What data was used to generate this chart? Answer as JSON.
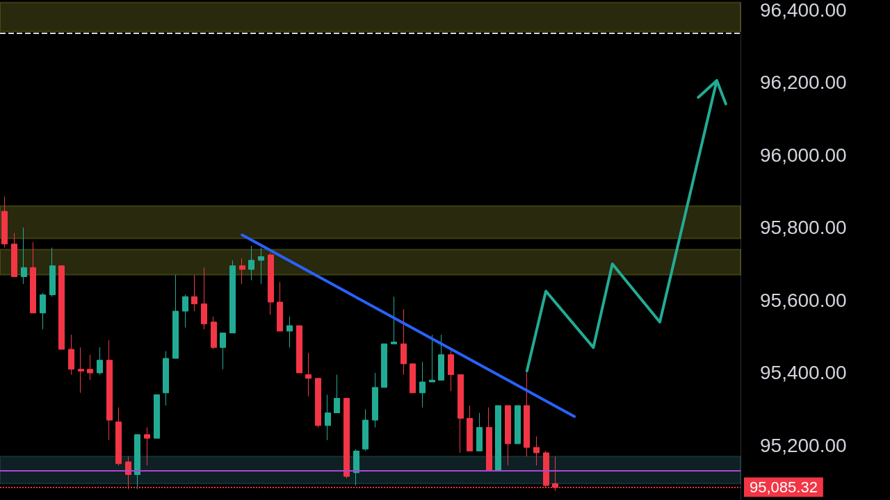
{
  "chart_data": {
    "type": "candlestick",
    "categories": [
      null,
      null,
      null,
      null,
      null,
      null,
      null,
      null,
      null,
      null,
      null,
      null,
      null,
      null,
      null,
      null,
      null,
      null,
      null,
      null,
      null,
      null,
      null,
      null,
      null,
      null,
      null,
      null,
      null,
      null,
      null,
      null,
      null,
      null,
      null,
      null,
      null,
      null,
      null,
      null,
      null,
      null,
      null,
      null,
      null,
      null,
      null,
      null,
      null,
      null,
      null,
      null,
      null,
      null,
      null,
      null,
      null,
      null,
      null,
      null,
      null,
      null,
      null,
      null,
      null,
      null,
      null,
      null,
      null,
      null,
      null,
      null,
      null,
      null,
      null,
      null,
      null,
      null
    ],
    "ohlc": [
      [
        95845,
        95885,
        95745,
        95755
      ],
      [
        95755,
        95785,
        95665,
        95665
      ],
      [
        95665,
        95800,
        95645,
        95690
      ],
      [
        95690,
        95760,
        95565,
        95565
      ],
      [
        95565,
        95620,
        95520,
        95615
      ],
      [
        95615,
        95745,
        95610,
        95695
      ],
      [
        95695,
        95695,
        95465,
        95465
      ],
      [
        95465,
        95505,
        95395,
        95410
      ],
      [
        95410,
        95470,
        95345,
        95405
      ],
      [
        95410,
        95450,
        95380,
        95400
      ],
      [
        95400,
        95470,
        95395,
        95435
      ],
      [
        95435,
        95490,
        95215,
        95270
      ],
      [
        95265,
        95305,
        95145,
        95150
      ],
      [
        95155,
        95170,
        95080,
        95120
      ],
      [
        95120,
        95230,
        95080,
        95230
      ],
      [
        95230,
        95250,
        95145,
        95220
      ],
      [
        95220,
        95340,
        95220,
        95340
      ],
      [
        95345,
        95460,
        95310,
        95440
      ],
      [
        95440,
        95670,
        95440,
        95570
      ],
      [
        95570,
        95615,
        95525,
        95610
      ],
      [
        95610,
        95670,
        95570,
        95590
      ],
      [
        95590,
        95690,
        95520,
        95535
      ],
      [
        95540,
        95555,
        95465,
        95470
      ],
      [
        95470,
        95510,
        95410,
        95510
      ],
      [
        95510,
        95710,
        95510,
        95695
      ],
      [
        95695,
        95715,
        95645,
        95685
      ],
      [
        95685,
        95750,
        95655,
        95710
      ],
      [
        95710,
        95745,
        95645,
        95720
      ],
      [
        95725,
        95730,
        95560,
        95595
      ],
      [
        95595,
        95650,
        95515,
        95515
      ],
      [
        95515,
        95555,
        95470,
        95530
      ],
      [
        95530,
        95530,
        95400,
        95400
      ],
      [
        95395,
        95455,
        95335,
        95385
      ],
      [
        95385,
        95385,
        95250,
        95255
      ],
      [
        95255,
        95340,
        95215,
        95290
      ],
      [
        95290,
        95395,
        95290,
        95330
      ],
      [
        95330,
        95330,
        95110,
        95115
      ],
      [
        95125,
        95190,
        95090,
        95185
      ],
      [
        95190,
        95300,
        95185,
        95270
      ],
      [
        95270,
        95400,
        95250,
        95360
      ],
      [
        95360,
        95480,
        95360,
        95480
      ],
      [
        95480,
        95610,
        95480,
        95485
      ],
      [
        95480,
        95575,
        95395,
        95425
      ],
      [
        95425,
        95425,
        95345,
        95345
      ],
      [
        95345,
        95430,
        95305,
        95375
      ],
      [
        95375,
        95505,
        95375,
        95380
      ],
      [
        95380,
        95505,
        95380,
        95450
      ],
      [
        95450,
        95465,
        95350,
        95395
      ],
      [
        95395,
        95395,
        95180,
        95275
      ],
      [
        95275,
        95310,
        95185,
        95185
      ],
      [
        95185,
        95290,
        95185,
        95250
      ],
      [
        95250,
        95305,
        95130,
        95130
      ],
      [
        95130,
        95310,
        95130,
        95310
      ],
      [
        95310,
        95310,
        95145,
        95205
      ],
      [
        95205,
        95310,
        95205,
        95310
      ],
      [
        95310,
        95400,
        95170,
        95195
      ],
      [
        95195,
        95225,
        95145,
        95180
      ],
      [
        95180,
        95185,
        95085,
        95090
      ],
      [
        95095,
        95170,
        95075,
        95085
      ],
      null,
      null,
      null,
      null,
      null,
      null,
      null,
      null,
      null,
      null,
      null,
      null,
      null,
      null,
      null,
      null,
      null,
      null,
      null
    ],
    "series": [
      {
        "type": "line",
        "color": "#2962ff",
        "values": [
          null,
          null,
          null,
          null,
          null,
          null,
          null,
          null,
          null,
          null,
          null,
          null,
          null,
          null,
          null,
          null,
          null,
          null,
          null,
          null,
          null,
          null,
          null,
          null,
          null,
          95780,
          null,
          null,
          null,
          null,
          null,
          null,
          null,
          null,
          null,
          null,
          null,
          null,
          null,
          null,
          null,
          null,
          null,
          null,
          null,
          null,
          null,
          null,
          null,
          null,
          null,
          null,
          null,
          null,
          null,
          null,
          null,
          null,
          null,
          null,
          95280,
          null,
          null,
          null,
          null,
          null,
          null,
          null,
          null,
          null,
          null,
          null,
          null,
          null,
          null,
          null,
          null,
          null
        ]
      },
      {
        "type": "line",
        "color": "#22ab94",
        "values": [
          null,
          null,
          null,
          null,
          null,
          null,
          null,
          null,
          null,
          null,
          null,
          null,
          null,
          null,
          null,
          null,
          null,
          null,
          null,
          null,
          null,
          null,
          null,
          null,
          null,
          null,
          null,
          null,
          null,
          null,
          null,
          null,
          null,
          null,
          null,
          null,
          null,
          null,
          null,
          null,
          null,
          null,
          null,
          null,
          null,
          null,
          null,
          null,
          null,
          null,
          null,
          null,
          null,
          null,
          null,
          95405,
          null,
          95625,
          null,
          null,
          null,
          null,
          95470,
          null,
          95700,
          null,
          null,
          null,
          null,
          95540,
          null,
          null,
          null,
          null,
          null,
          96205,
          null,
          null
        ]
      }
    ],
    "ylim": [
      95050,
      96420
    ],
    "yticks": [
      {
        "value": 95200,
        "label": "95,200.00"
      },
      {
        "value": 95400,
        "label": "95,400.00"
      },
      {
        "value": 95600,
        "label": "95,600.00"
      },
      {
        "value": 95800,
        "label": "95,800.00"
      },
      {
        "value": 96000,
        "label": "96,000.00"
      },
      {
        "value": 96200,
        "label": "96,200.00"
      },
      {
        "value": 96400,
        "label": "96,400.00"
      }
    ],
    "ref_lines": [
      {
        "axis": "y",
        "value": 95085.32,
        "label": "95,085.32",
        "color": "#f23645",
        "line_style": "dotted"
      },
      {
        "axis": "y",
        "value": 96335,
        "color": "#d9d9d9",
        "line_style": "dashed"
      },
      {
        "axis": "y",
        "value": 95130,
        "color": "#b044d8",
        "line_style": "solid"
      }
    ],
    "bands": [
      {
        "axis": "y",
        "from": 96340,
        "to": 96420,
        "color": "#e6e24a"
      },
      {
        "axis": "y",
        "from": 95770,
        "to": 95860,
        "color": "#e6e24a"
      },
      {
        "axis": "y",
        "from": 95670,
        "to": 95740,
        "color": "#e6e24a"
      },
      {
        "axis": "y",
        "from": 95095,
        "to": 95170,
        "color": "#4fb3c8"
      }
    ],
    "tick_labels": "y",
    "grid": false,
    "marker": "none"
  }
}
